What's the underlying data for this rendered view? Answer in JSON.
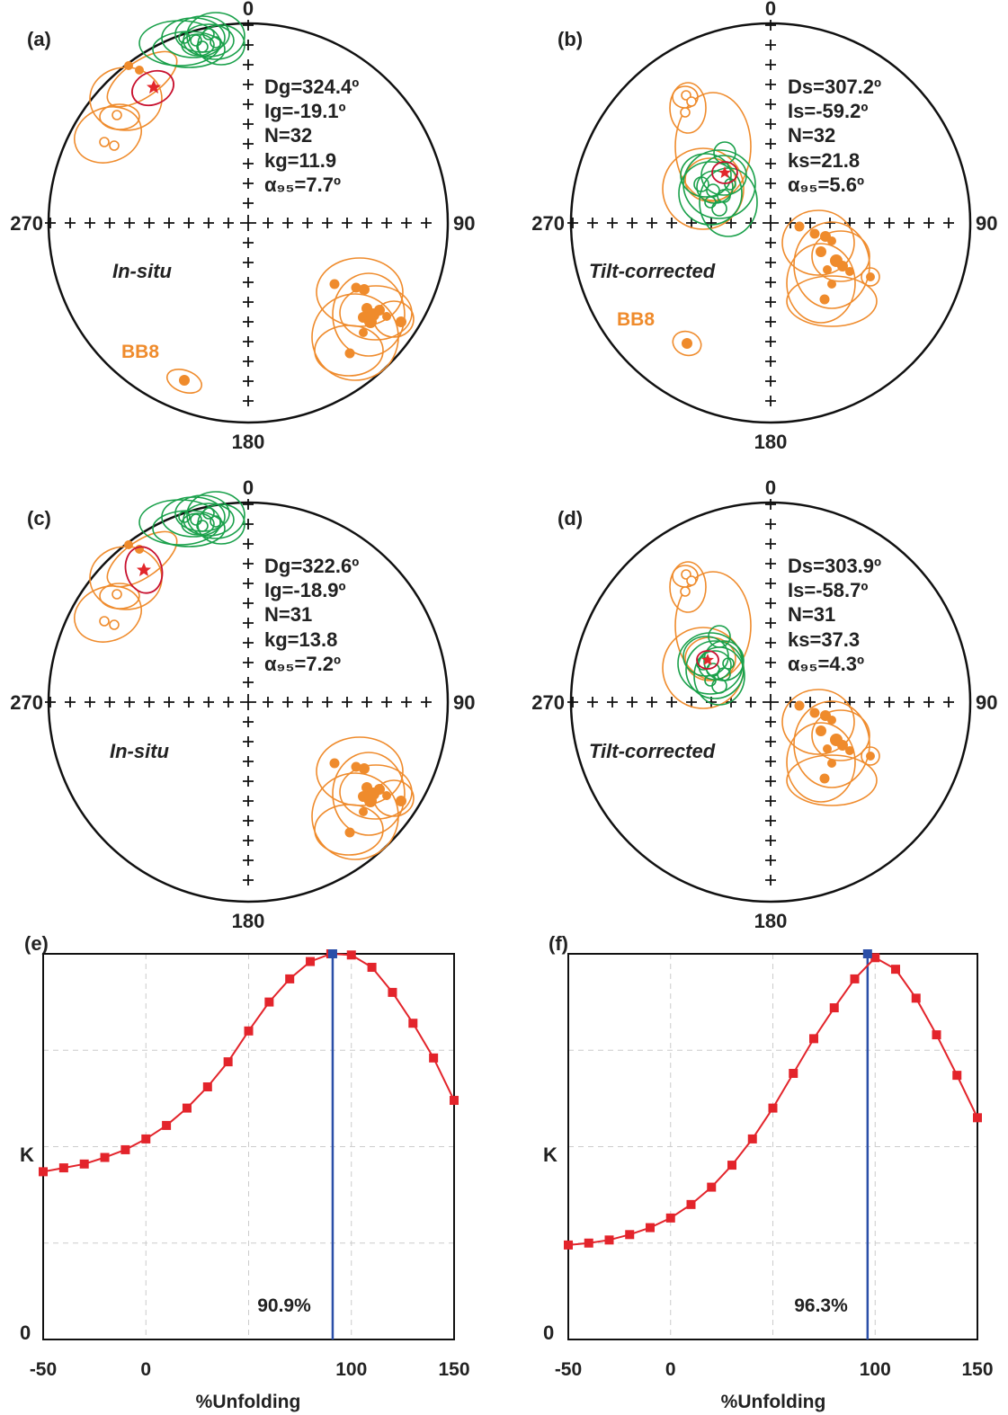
{
  "colors": {
    "orange": "#ef8b2c",
    "green": "#19a04a",
    "red_star": "#e2262b",
    "red_ellipse": "#c8102e",
    "series": "#e3242b",
    "marker": "#e3242b",
    "peak_line": "#2b4fa8",
    "grid": "#cccccc"
  },
  "stereonets": [
    {
      "letter": "(a)",
      "n": "0",
      "e": "90",
      "s": "180",
      "w": "270",
      "mode": "In-situ",
      "site": "BB8",
      "stats": [
        "Dg=324.4º",
        "Ig=-19.1º",
        "N=32",
        "kg=11.9",
        "α₉₅=7.7º"
      ]
    },
    {
      "letter": "(b)",
      "n": "0",
      "e": "90",
      "s": "180",
      "w": "270",
      "mode": "Tilt-corrected",
      "site": "BB8",
      "stats": [
        "Ds=307.2º",
        "Is=-59.2º",
        "N=32",
        "ks=21.8",
        "α₉₅=5.6º"
      ]
    },
    {
      "letter": "(c)",
      "n": "0",
      "e": "90",
      "s": "180",
      "w": "270",
      "mode": "In-situ",
      "site": "",
      "stats": [
        "Dg=322.6º",
        "Ig=-18.9º",
        "N=31",
        "kg=13.8",
        "α₉₅=7.2º"
      ]
    },
    {
      "letter": "(d)",
      "n": "0",
      "e": "90",
      "s": "180",
      "w": "270",
      "mode": "Tilt-corrected",
      "site": "",
      "stats": [
        "Ds=303.9º",
        "Is=-58.7º",
        "N=31",
        "ks=37.3",
        "α₉₅=4.3º"
      ]
    }
  ],
  "chart_data": [
    {
      "type": "line",
      "panel": "(e)",
      "xlabel": "%Unfolding",
      "ylabel": "K",
      "y_zero_label": "0",
      "xlim": [
        -50,
        150
      ],
      "ylim": [
        0,
        1
      ],
      "x_ticks": [
        "-50",
        "0",
        "100",
        "150"
      ],
      "grid": true,
      "peak": {
        "x": 90.9,
        "label": "90.9%"
      },
      "x": [
        -50,
        -40,
        -30,
        -20,
        -10,
        0,
        10,
        20,
        30,
        40,
        50,
        60,
        70,
        80,
        90,
        100,
        110,
        120,
        130,
        140,
        150
      ],
      "values": [
        0.435,
        0.445,
        0.455,
        0.472,
        0.492,
        0.52,
        0.555,
        0.6,
        0.655,
        0.72,
        0.8,
        0.875,
        0.935,
        0.98,
        1.0,
        0.997,
        0.965,
        0.9,
        0.82,
        0.73,
        0.62
      ]
    },
    {
      "type": "line",
      "panel": "(f)",
      "xlabel": "%Unfolding",
      "ylabel": "K",
      "y_zero_label": "0",
      "xlim": [
        -50,
        150
      ],
      "ylim": [
        0,
        1
      ],
      "x_ticks": [
        "-50",
        "0",
        "100",
        "150"
      ],
      "grid": true,
      "peak": {
        "x": 96.3,
        "label": "96.3%"
      },
      "x": [
        -50,
        -40,
        -30,
        -20,
        -10,
        0,
        10,
        20,
        30,
        40,
        50,
        60,
        70,
        80,
        90,
        100,
        110,
        120,
        130,
        140,
        150
      ],
      "values": [
        0.245,
        0.25,
        0.258,
        0.272,
        0.29,
        0.315,
        0.35,
        0.395,
        0.452,
        0.52,
        0.6,
        0.69,
        0.78,
        0.86,
        0.935,
        0.99,
        0.96,
        0.885,
        0.79,
        0.685,
        0.575
      ]
    }
  ]
}
